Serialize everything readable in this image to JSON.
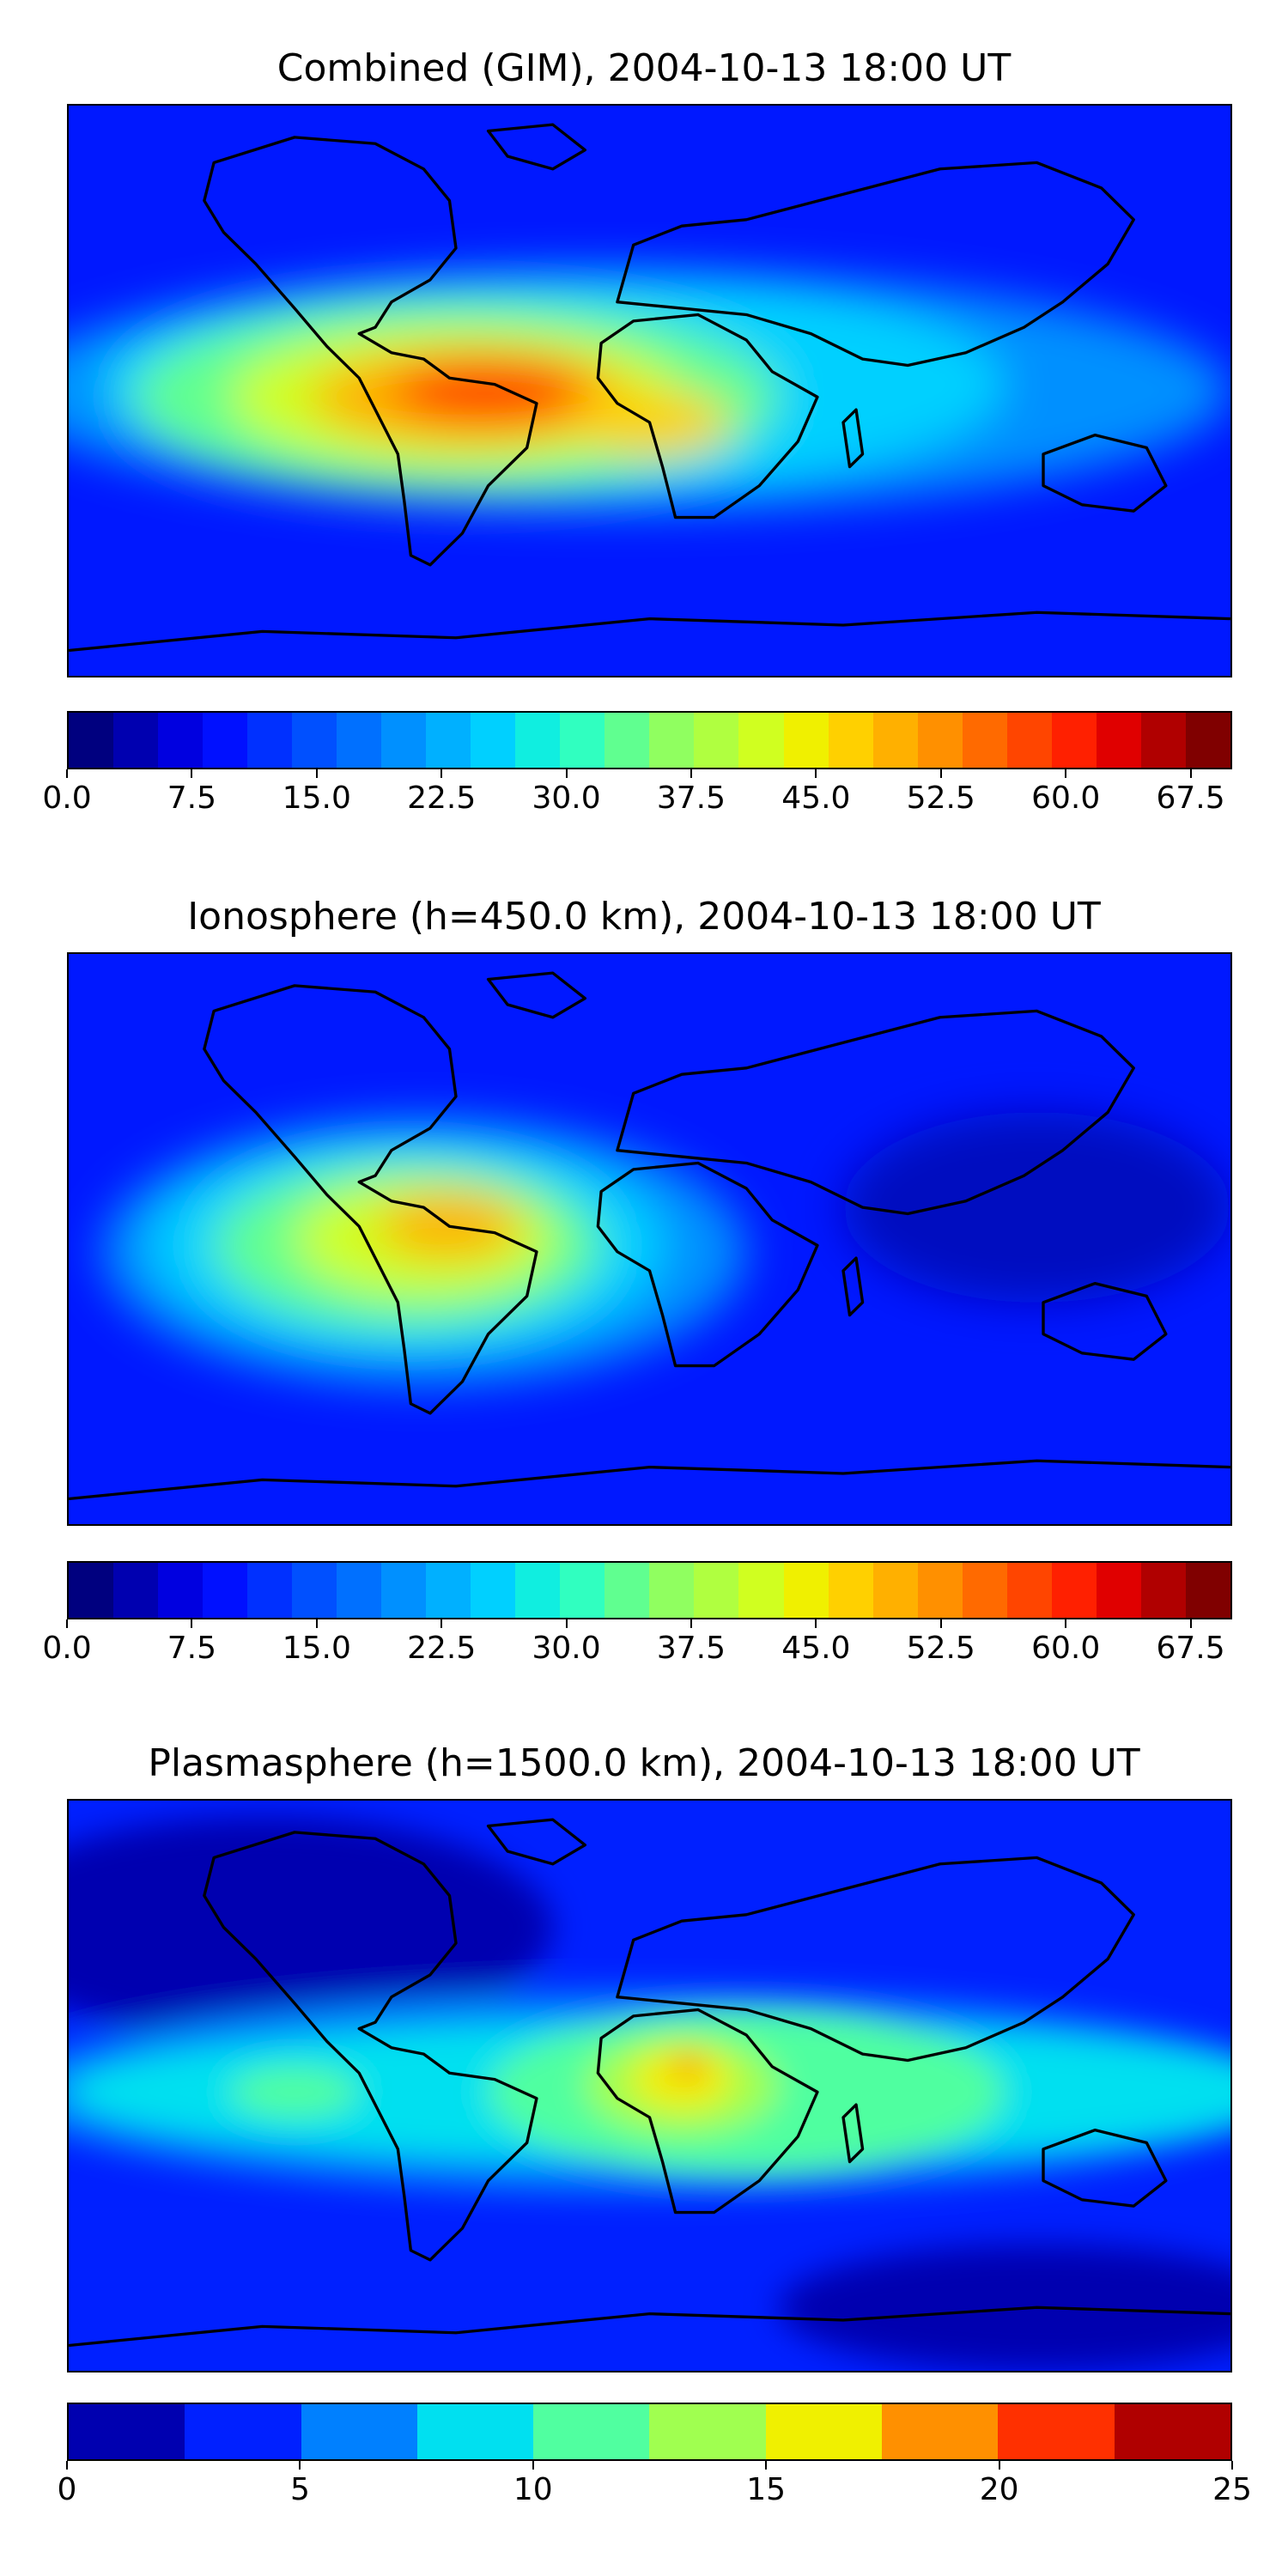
{
  "panels": [
    {
      "title": "Combined (GIM), 2004-10-13 18:00 UT",
      "colorbar_ticks": [
        "0.0",
        "7.5",
        "15.0",
        "22.5",
        "30.0",
        "37.5",
        "45.0",
        "52.5",
        "60.0",
        "67.5"
      ],
      "colorbar_range": [
        0,
        70
      ],
      "colorbar_colors": [
        "#00007f",
        "#0000b0",
        "#0000e0",
        "#0010ff",
        "#0030ff",
        "#0050ff",
        "#0070ff",
        "#0090ff",
        "#00b0ff",
        "#00d0ff",
        "#10eee0",
        "#30ffc0",
        "#60ff90",
        "#90ff60",
        "#b0ff40",
        "#d0ff20",
        "#f0f000",
        "#ffd000",
        "#ffb000",
        "#ff9000",
        "#ff6a00",
        "#ff4500",
        "#ff2000",
        "#e00000",
        "#b00000",
        "#800000"
      ]
    },
    {
      "title": "Ionosphere  (h=450.0 km), 2004-10-13 18:00 UT",
      "colorbar_ticks": [
        "0.0",
        "7.5",
        "15.0",
        "22.5",
        "30.0",
        "37.5",
        "45.0",
        "52.5",
        "60.0",
        "67.5"
      ],
      "colorbar_range": [
        0,
        70
      ],
      "colorbar_colors": [
        "#00007f",
        "#0000b0",
        "#0000e0",
        "#0010ff",
        "#0030ff",
        "#0050ff",
        "#0070ff",
        "#0090ff",
        "#00b0ff",
        "#00d0ff",
        "#10eee0",
        "#30ffc0",
        "#60ff90",
        "#90ff60",
        "#b0ff40",
        "#d0ff20",
        "#f0f000",
        "#ffd000",
        "#ffb000",
        "#ff9000",
        "#ff6a00",
        "#ff4500",
        "#ff2000",
        "#e00000",
        "#b00000",
        "#800000"
      ]
    },
    {
      "title": "Plasmasphere (h=1500.0 km), 2004-10-13 18:00 UT",
      "colorbar_ticks": [
        "0",
        "5",
        "10",
        "15",
        "20",
        "25"
      ],
      "colorbar_range": [
        0,
        25
      ],
      "colorbar_colors": [
        "#0000b0",
        "#0020ff",
        "#0080ff",
        "#00e0f0",
        "#50ffa0",
        "#a0ff50",
        "#f0f000",
        "#ff9000",
        "#ff3000",
        "#b00000"
      ]
    }
  ]
}
